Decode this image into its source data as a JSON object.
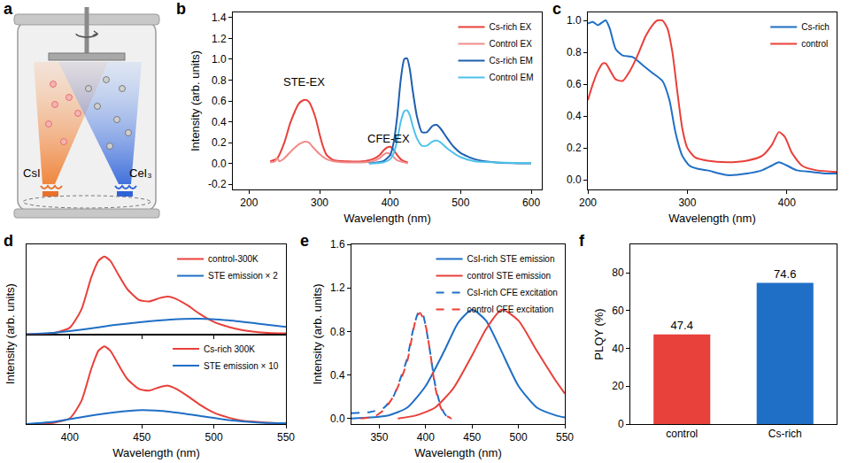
{
  "diagram": {
    "panel": "a",
    "sources": [
      "CsI",
      "CeI₃"
    ]
  },
  "chart_data": [
    {
      "panel": "b",
      "type": "line",
      "x_label": "Wavelength (nm)",
      "y_label": "Intensity (arb. units)",
      "xlim": [
        177,
        615
      ],
      "xticks": [
        200,
        300,
        400,
        500,
        600
      ],
      "ylim": [
        -0.25,
        1.45
      ],
      "yticks": [
        {
          "value": -0.2,
          "label": "-0.2"
        },
        {
          "value": 0,
          "label": "0.0"
        },
        {
          "value": 0.2,
          "label": "0.2"
        },
        {
          "value": 0.4,
          "label": "0.4"
        },
        {
          "value": 0.6,
          "label": "0.6"
        },
        {
          "value": 0.8,
          "label": "0.8"
        },
        {
          "value": 1,
          "label": "1.0"
        },
        {
          "value": 1.2,
          "label": "1.2"
        },
        {
          "value": 1.4,
          "label": "1.4"
        }
      ],
      "grid": false,
      "legend": "upper right",
      "annotations": [
        {
          "text": "STE-EX",
          "x": 278,
          "y": 0.78
        },
        {
          "text": "CFE-EX",
          "x": 398,
          "y": 0.24
        }
      ],
      "series": [
        {
          "name": "Cs-rich EX",
          "color": "#e8403a",
          "line_style": "solid",
          "x": [
            230,
            240,
            250,
            258,
            265,
            270,
            275,
            280,
            285,
            290,
            295,
            300,
            305,
            310,
            320,
            340,
            360,
            375,
            385,
            390,
            395,
            400,
            405,
            410,
            415,
            420,
            425
          ],
          "values": [
            0.02,
            0.05,
            0.2,
            0.38,
            0.5,
            0.57,
            0.6,
            0.61,
            0.59,
            0.52,
            0.42,
            0.28,
            0.16,
            0.08,
            0.03,
            0.02,
            0.02,
            0.04,
            0.08,
            0.12,
            0.15,
            0.16,
            0.13,
            0.08,
            0.04,
            0.02,
            0.01
          ]
        },
        {
          "name": "Control EX",
          "color": "#f28b8b",
          "line_style": "solid",
          "x": [
            230,
            237,
            240,
            243,
            250,
            260,
            270,
            275,
            280,
            285,
            290,
            300,
            310,
            320,
            340,
            360,
            375,
            385,
            390,
            395,
            400,
            405,
            410,
            420,
            425
          ],
          "values": [
            0.01,
            0.02,
            0.05,
            0.02,
            0.05,
            0.12,
            0.18,
            0.2,
            0.21,
            0.2,
            0.16,
            0.09,
            0.04,
            0.02,
            0.01,
            0.01,
            0.02,
            0.05,
            0.08,
            0.1,
            0.09,
            0.06,
            0.03,
            0.01,
            0.0
          ]
        },
        {
          "name": "Cs-rich EM",
          "color": "#1f5fb0",
          "line_style": "solid",
          "x": [
            370,
            390,
            400,
            405,
            410,
            415,
            420,
            424,
            428,
            432,
            438,
            445,
            452,
            460,
            466,
            472,
            480,
            490,
            500,
            520,
            550,
            600
          ],
          "values": [
            0.0,
            0.02,
            0.08,
            0.2,
            0.45,
            0.8,
            1.0,
            1.01,
            0.9,
            0.7,
            0.45,
            0.3,
            0.3,
            0.36,
            0.37,
            0.33,
            0.25,
            0.16,
            0.1,
            0.04,
            0.01,
            0.0
          ]
        },
        {
          "name": "Control EM",
          "color": "#4ec2ea",
          "line_style": "solid",
          "x": [
            370,
            390,
            400,
            405,
            410,
            415,
            420,
            424,
            428,
            432,
            438,
            445,
            452,
            460,
            466,
            472,
            480,
            490,
            500,
            520,
            550,
            600
          ],
          "values": [
            0.0,
            0.01,
            0.04,
            0.1,
            0.22,
            0.4,
            0.5,
            0.51,
            0.46,
            0.36,
            0.24,
            0.17,
            0.17,
            0.21,
            0.22,
            0.2,
            0.15,
            0.1,
            0.06,
            0.02,
            0.01,
            0.0
          ]
        }
      ]
    },
    {
      "panel": "c",
      "type": "line",
      "x_label": "Wavelength (nm)",
      "xlim": [
        200,
        450
      ],
      "xticks": [
        200,
        300,
        400
      ],
      "ylim": [
        -0.06,
        1.05
      ],
      "yticks": [
        {
          "value": 0,
          "label": "0.0"
        },
        {
          "value": 0.2,
          "label": "0.2"
        },
        {
          "value": 0.4,
          "label": "0.4"
        },
        {
          "value": 0.6,
          "label": "0.6"
        },
        {
          "value": 0.8,
          "label": "0.8"
        },
        {
          "value": 1,
          "label": "1.0"
        }
      ],
      "grid": false,
      "legend": "upper right",
      "series": [
        {
          "name": "Cs-rich",
          "color": "#1f6fc6",
          "line_style": "solid",
          "x": [
            200,
            205,
            210,
            215,
            218,
            222,
            228,
            235,
            245,
            255,
            265,
            275,
            282,
            288,
            295,
            302,
            310,
            320,
            340,
            360,
            375,
            385,
            392,
            400,
            410,
            425,
            440,
            450
          ],
          "values": [
            0.98,
            0.99,
            0.97,
            0.99,
            1.0,
            0.95,
            0.82,
            0.78,
            0.77,
            0.72,
            0.67,
            0.62,
            0.5,
            0.3,
            0.15,
            0.09,
            0.07,
            0.06,
            0.03,
            0.04,
            0.06,
            0.09,
            0.11,
            0.09,
            0.06,
            0.05,
            0.04,
            0.04
          ]
        },
        {
          "name": "control",
          "color": "#e8403a",
          "line_style": "solid",
          "x": [
            200,
            205,
            210,
            215,
            218,
            222,
            228,
            235,
            242,
            250,
            258,
            265,
            270,
            275,
            280,
            285,
            290,
            295,
            300,
            308,
            320,
            340,
            360,
            375,
            385,
            392,
            398,
            405,
            415,
            430,
            450
          ],
          "values": [
            0.5,
            0.6,
            0.68,
            0.73,
            0.73,
            0.69,
            0.63,
            0.62,
            0.68,
            0.78,
            0.9,
            0.97,
            1.0,
            1.0,
            0.95,
            0.8,
            0.55,
            0.32,
            0.2,
            0.14,
            0.12,
            0.11,
            0.12,
            0.15,
            0.22,
            0.3,
            0.27,
            0.17,
            0.09,
            0.06,
            0.05
          ]
        }
      ]
    },
    {
      "panel": "d",
      "type": "line",
      "x_label": "Wavelength (nm)",
      "y_label": "Intensity (arb. units)",
      "xlim": [
        370,
        550
      ],
      "xticks": [
        400,
        450,
        500,
        550
      ],
      "tick_labels": "x",
      "grid": false,
      "legend": "upper right",
      "panels": [
        {
          "ylim": [
            0,
            1.1
          ],
          "series": [
            {
              "name": "control-300K",
              "color": "#e8403a",
              "line_style": "solid",
              "x": [
                370,
                380,
                390,
                400,
                408,
                415,
                420,
                424,
                428,
                434,
                440,
                448,
                455,
                462,
                468,
                474,
                482,
                490,
                500,
                510,
                520,
                535,
                550
              ],
              "values": [
                0.0,
                0.0,
                0.02,
                0.08,
                0.3,
                0.7,
                0.9,
                0.95,
                0.9,
                0.72,
                0.55,
                0.42,
                0.4,
                0.44,
                0.46,
                0.43,
                0.35,
                0.25,
                0.15,
                0.09,
                0.05,
                0.02,
                0.01
              ]
            },
            {
              "name": "STE emission × 2",
              "color": "#1f6fc6",
              "line_style": "solid",
              "x": [
                370,
                390,
                410,
                430,
                450,
                470,
                490,
                510,
                530,
                550
              ],
              "values": [
                0.0,
                0.02,
                0.06,
                0.11,
                0.15,
                0.18,
                0.19,
                0.17,
                0.13,
                0.09
              ]
            }
          ]
        },
        {
          "ylim": [
            0,
            1.1
          ],
          "series": [
            {
              "name": "Cs-rich 300K",
              "color": "#e8403a",
              "line_style": "solid",
              "x": [
                370,
                380,
                390,
                400,
                408,
                415,
                420,
                424,
                428,
                434,
                440,
                448,
                455,
                462,
                468,
                474,
                482,
                490,
                500,
                510,
                520,
                535,
                550
              ],
              "values": [
                0.0,
                0.0,
                0.02,
                0.07,
                0.28,
                0.68,
                0.9,
                0.95,
                0.9,
                0.72,
                0.55,
                0.43,
                0.41,
                0.45,
                0.47,
                0.43,
                0.34,
                0.24,
                0.14,
                0.08,
                0.04,
                0.02,
                0.01
              ]
            },
            {
              "name": "STE emission × 10",
              "color": "#1f6fc6",
              "line_style": "solid",
              "x": [
                370,
                390,
                410,
                430,
                450,
                470,
                490,
                510,
                530,
                550
              ],
              "values": [
                0.0,
                0.03,
                0.09,
                0.14,
                0.17,
                0.15,
                0.1,
                0.05,
                0.02,
                0.01
              ]
            }
          ]
        }
      ]
    },
    {
      "panel": "e",
      "type": "line",
      "x_label": "Wavelength (nm)",
      "y_label": "Intensity (arb. units)",
      "xlim": [
        320,
        550
      ],
      "xticks": [
        350,
        400,
        450,
        500,
        550
      ],
      "ylim": [
        -0.05,
        1.6
      ],
      "yticks": [
        {
          "value": 0,
          "label": "0.0"
        },
        {
          "value": 0.4,
          "label": "0.4"
        },
        {
          "value": 0.8,
          "label": "0.8"
        },
        {
          "value": 1.2,
          "label": "1.2"
        },
        {
          "value": 1.6,
          "label": "1.6"
        }
      ],
      "grid": false,
      "legend": "upper right",
      "series": [
        {
          "name": "CsI-rich STE emission",
          "color": "#1f6fc6",
          "line_style": "solid",
          "x": [
            320,
            340,
            360,
            380,
            400,
            420,
            435,
            450,
            465,
            480,
            500,
            520,
            540,
            550
          ],
          "values": [
            0.0,
            0.01,
            0.03,
            0.1,
            0.3,
            0.62,
            0.88,
            1.0,
            0.9,
            0.65,
            0.3,
            0.1,
            0.03,
            0.01
          ]
        },
        {
          "name": "control STE emission",
          "color": "#e8403a",
          "line_style": "solid",
          "x": [
            370,
            390,
            410,
            430,
            450,
            465,
            482,
            500,
            520,
            540,
            550
          ],
          "values": [
            0.0,
            0.03,
            0.1,
            0.28,
            0.58,
            0.82,
            1.0,
            0.9,
            0.62,
            0.35,
            0.23
          ]
        },
        {
          "name": "CsI-rich CFE excitation",
          "color": "#1f6fc6",
          "line_style": "dashed",
          "x": [
            320,
            340,
            355,
            365,
            372,
            380,
            386,
            392,
            396,
            400,
            405,
            410,
            415,
            420,
            425
          ],
          "values": [
            0.05,
            0.06,
            0.1,
            0.2,
            0.35,
            0.55,
            0.8,
            0.97,
            0.98,
            0.85,
            0.6,
            0.32,
            0.15,
            0.05,
            0.0
          ]
        },
        {
          "name": "control CFE excitation",
          "color": "#e8403a",
          "line_style": "dashed",
          "x": [
            330,
            345,
            355,
            365,
            372,
            380,
            386,
            390,
            394,
            400,
            405,
            410,
            415,
            420,
            428
          ],
          "values": [
            0.0,
            0.02,
            0.08,
            0.2,
            0.33,
            0.52,
            0.78,
            0.93,
            0.97,
            0.85,
            0.6,
            0.3,
            0.13,
            0.04,
            0.0
          ]
        }
      ]
    },
    {
      "panel": "f",
      "type": "bar",
      "y_label": "PLQY (%)",
      "categories": [
        "control",
        "Cs-rich"
      ],
      "values": [
        47.4,
        74.6
      ],
      "colors": [
        "#e8403a",
        "#1f6fc6"
      ],
      "ylim": [
        0,
        95
      ],
      "yticks": [
        0,
        20,
        40,
        60,
        80
      ],
      "grid": false,
      "data_labels": true
    }
  ]
}
